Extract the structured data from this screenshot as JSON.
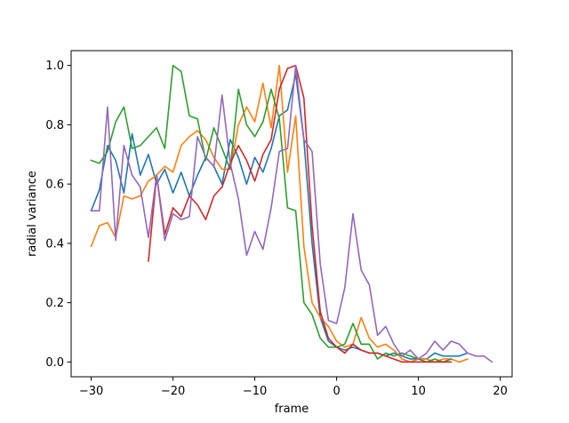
{
  "chart_data": {
    "type": "line",
    "title": "",
    "xlabel": "frame",
    "ylabel": "radial variance",
    "xlim": [
      -32.45,
      21.45
    ],
    "ylim": [
      -0.05,
      1.05
    ],
    "xticks": [
      -30,
      -20,
      -10,
      0,
      10,
      20
    ],
    "xtick_labels": [
      "−30",
      "−20",
      "−10",
      "0",
      "10",
      "20"
    ],
    "yticks": [
      0.0,
      0.2,
      0.4,
      0.6,
      0.8,
      1.0
    ],
    "ytick_labels": [
      "0.0",
      "0.2",
      "0.4",
      "0.6",
      "0.8",
      "1.0"
    ],
    "grid": false,
    "legend": null,
    "series": [
      {
        "color": "#1f77b4",
        "x": [
          -30,
          -29,
          -28,
          -27,
          -26,
          -25,
          -24,
          -23,
          -22,
          -21,
          -20,
          -19,
          -18,
          -17,
          -16,
          -15,
          -14,
          -13,
          -12,
          -11,
          -10,
          -9,
          -8,
          -7,
          -6,
          -5,
          -4,
          -3,
          -2,
          -1,
          0,
          1,
          2,
          3,
          4,
          5,
          6,
          7,
          8,
          9,
          10,
          11,
          12,
          13,
          14,
          15,
          16
        ],
        "y": [
          0.51,
          0.58,
          0.73,
          0.68,
          0.57,
          0.77,
          0.63,
          0.7,
          0.6,
          0.65,
          0.57,
          0.64,
          0.56,
          0.63,
          0.69,
          0.66,
          0.6,
          0.75,
          0.69,
          0.6,
          0.69,
          0.64,
          0.72,
          0.83,
          0.85,
          0.97,
          0.75,
          0.4,
          0.15,
          0.07,
          0.05,
          0.04,
          0.05,
          0.04,
          0.03,
          0.03,
          0.02,
          0.03,
          0.02,
          0.01,
          0.01,
          0.01,
          0.03,
          0.02,
          0.02,
          0.02,
          0.03
        ]
      },
      {
        "color": "#ff7f0e",
        "x": [
          -30,
          -29,
          -28,
          -27,
          -26,
          -25,
          -24,
          -23,
          -22,
          -21,
          -20,
          -19,
          -18,
          -17,
          -16,
          -15,
          -14,
          -13,
          -12,
          -11,
          -10,
          -9,
          -8,
          -7,
          -6,
          -5,
          -4,
          -3,
          -2,
          -1,
          0,
          1,
          2,
          3,
          4,
          5,
          6,
          7,
          8,
          9,
          10,
          11,
          12,
          13,
          14,
          15,
          16
        ],
        "y": [
          0.39,
          0.46,
          0.47,
          0.42,
          0.56,
          0.55,
          0.56,
          0.61,
          0.63,
          0.66,
          0.64,
          0.73,
          0.76,
          0.78,
          0.75,
          0.69,
          0.65,
          0.65,
          0.8,
          0.86,
          0.81,
          0.94,
          0.79,
          1.0,
          0.64,
          0.83,
          0.39,
          0.2,
          0.15,
          0.12,
          0.07,
          0.05,
          0.06,
          0.15,
          0.08,
          0.05,
          0.06,
          0.04,
          0.01,
          0.0,
          0.01,
          0.01,
          0.0,
          0.01,
          0.01,
          0.0,
          0.01
        ]
      },
      {
        "color": "#2ca02c",
        "x": [
          -30,
          -29,
          -28,
          -27,
          -26,
          -25,
          -24,
          -23,
          -22,
          -21,
          -20,
          -19,
          -18,
          -17,
          -16,
          -15,
          -14,
          -13,
          -12,
          -11,
          -10,
          -9,
          -8,
          -7,
          -6,
          -5,
          -4,
          -3,
          -2,
          -1,
          0,
          1,
          2,
          3,
          4,
          5,
          6,
          7,
          8,
          9,
          10,
          11,
          12,
          13,
          14
        ],
        "y": [
          0.68,
          0.67,
          0.71,
          0.81,
          0.86,
          0.72,
          0.73,
          0.76,
          0.79,
          0.72,
          1.0,
          0.98,
          0.83,
          0.82,
          0.68,
          0.79,
          0.72,
          0.65,
          0.92,
          0.8,
          0.76,
          0.81,
          0.92,
          0.82,
          0.52,
          0.51,
          0.2,
          0.16,
          0.08,
          0.05,
          0.05,
          0.06,
          0.13,
          0.06,
          0.06,
          0.01,
          0.03,
          0.02,
          0.03,
          0.02,
          0.01,
          0.0,
          0.01,
          0.0,
          0.01
        ]
      },
      {
        "color": "#d62728",
        "x": [
          -23,
          -22,
          -21,
          -20,
          -19,
          -18,
          -17,
          -16,
          -15,
          -14,
          -13,
          -12,
          -11,
          -10,
          -9,
          -8,
          -7,
          -6,
          -5,
          -4,
          -3,
          -2,
          -1,
          0,
          1,
          2,
          3,
          4,
          5,
          6,
          7,
          8,
          9,
          10,
          11,
          12,
          13,
          14
        ],
        "y": [
          0.34,
          0.63,
          0.43,
          0.52,
          0.49,
          0.56,
          0.53,
          0.48,
          0.56,
          0.59,
          0.67,
          0.73,
          0.68,
          0.61,
          0.7,
          0.75,
          0.92,
          0.99,
          1.0,
          0.89,
          0.46,
          0.17,
          0.08,
          0.05,
          0.03,
          0.06,
          0.04,
          0.03,
          0.03,
          0.02,
          0.01,
          0.0,
          0.0,
          0.0,
          0.0,
          0.0,
          0.0,
          0.0
        ]
      },
      {
        "color": "#9467bd",
        "x": [
          -30,
          -29,
          -28,
          -27,
          -26,
          -25,
          -24,
          -23,
          -22,
          -21,
          -20,
          -19,
          -18,
          -17,
          -16,
          -15,
          -14,
          -13,
          -12,
          -11,
          -10,
          -9,
          -8,
          -7,
          -6,
          -5,
          -4,
          -3,
          -2,
          -1,
          0,
          1,
          2,
          3,
          4,
          5,
          6,
          7,
          8,
          9,
          10,
          11,
          12,
          13,
          14,
          15,
          16,
          17,
          18,
          19
        ],
        "y": [
          0.51,
          0.51,
          0.86,
          0.41,
          0.73,
          0.63,
          0.59,
          0.42,
          0.63,
          0.41,
          0.5,
          0.48,
          0.49,
          0.76,
          0.69,
          0.66,
          0.9,
          0.67,
          0.55,
          0.36,
          0.44,
          0.38,
          0.52,
          0.71,
          0.72,
          1.0,
          0.75,
          0.71,
          0.33,
          0.14,
          0.13,
          0.25,
          0.5,
          0.31,
          0.26,
          0.09,
          0.12,
          0.06,
          0.02,
          0.04,
          0.01,
          0.03,
          0.07,
          0.04,
          0.07,
          0.06,
          0.03,
          0.02,
          0.02,
          0.0
        ]
      }
    ]
  }
}
